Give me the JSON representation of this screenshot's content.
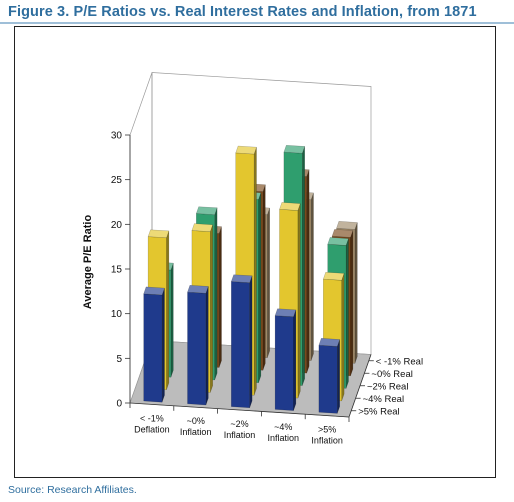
{
  "figure": {
    "title": "Figure 3. P/E Ratios vs. Real Interest Rates and Inflation, from 1871",
    "source": "Source: Research Affiliates."
  },
  "chart_data": {
    "type": "bar",
    "subtype": "3d-grouped-bar",
    "ylabel": "Average P/E Ratio",
    "ylim": [
      0,
      30
    ],
    "y_ticks": [
      0,
      5,
      10,
      15,
      20,
      25,
      30
    ],
    "grid": false,
    "legend_position": "right-depth-axis",
    "categories": [
      [
        "< -1%",
        "Deflation"
      ],
      [
        "~0%",
        "Inflation"
      ],
      [
        "~2%",
        "Inflation"
      ],
      [
        "~4%",
        "Inflation"
      ],
      [
        ">5%",
        "Inflation"
      ]
    ],
    "series": [
      {
        "name": ">5% Real",
        "color": "#1f3a8c",
        "values": [
          12,
          12.5,
          14,
          10.5,
          7.5
        ]
      },
      {
        "name": "~4% Real",
        "color": "#e3c62e",
        "values": [
          17,
          18,
          27,
          21,
          13.5
        ]
      },
      {
        "name": "~2% Real",
        "color": "#2f9e6e",
        "values": [
          12,
          18.5,
          20.5,
          26,
          16
        ]
      },
      {
        "name": "~0% Real",
        "color": "#7a4a1c",
        "values": [
          null,
          15,
          20,
          22,
          15.5
        ]
      },
      {
        "name": "< -1% Real",
        "color": "#a08a68",
        "values": [
          null,
          null,
          16,
          18,
          15
        ]
      }
    ]
  }
}
